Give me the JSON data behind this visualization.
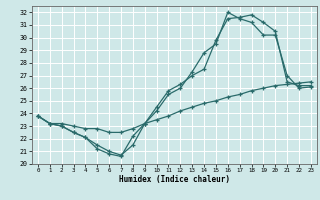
{
  "xlabel": "Humidex (Indice chaleur)",
  "bg_color": "#cfe8e8",
  "grid_color": "#ffffff",
  "line_color": "#2a6b6b",
  "xlim": [
    -0.5,
    23.5
  ],
  "ylim": [
    20,
    32.5
  ],
  "xticks": [
    0,
    1,
    2,
    3,
    4,
    5,
    6,
    7,
    8,
    9,
    10,
    11,
    12,
    13,
    14,
    15,
    16,
    17,
    18,
    19,
    20,
    21,
    22,
    23
  ],
  "yticks": [
    20,
    21,
    22,
    23,
    24,
    25,
    26,
    27,
    28,
    29,
    30,
    31,
    32
  ],
  "curve1_x": [
    0,
    1,
    2,
    3,
    4,
    5,
    6,
    7,
    8,
    9,
    10,
    11,
    12,
    13,
    14,
    15,
    16,
    17,
    18,
    19,
    20,
    21,
    22,
    23
  ],
  "curve1_y": [
    23.8,
    23.2,
    23.0,
    22.5,
    22.1,
    21.2,
    20.8,
    20.6,
    22.2,
    23.2,
    24.2,
    25.5,
    26.0,
    27.3,
    28.8,
    29.5,
    32.0,
    31.5,
    31.2,
    30.2,
    30.2,
    27.0,
    26.0,
    26.1
  ],
  "curve2_x": [
    0,
    1,
    2,
    3,
    4,
    5,
    6,
    7,
    8,
    9,
    10,
    11,
    12,
    13,
    14,
    15,
    16,
    17,
    18,
    19,
    20,
    21,
    22,
    23
  ],
  "curve2_y": [
    23.8,
    23.2,
    23.0,
    22.5,
    22.1,
    21.5,
    21.0,
    20.7,
    21.5,
    23.2,
    24.5,
    25.8,
    26.3,
    27.0,
    27.5,
    29.8,
    31.5,
    31.6,
    31.8,
    31.2,
    30.5,
    26.5,
    26.2,
    26.2
  ],
  "curve3_x": [
    0,
    1,
    2,
    3,
    4,
    5,
    6,
    7,
    8,
    9,
    10,
    11,
    12,
    13,
    14,
    15,
    16,
    17,
    18,
    19,
    20,
    21,
    22,
    23
  ],
  "curve3_y": [
    23.8,
    23.2,
    23.2,
    23.0,
    22.8,
    22.8,
    22.5,
    22.5,
    22.8,
    23.2,
    23.5,
    23.8,
    24.2,
    24.5,
    24.8,
    25.0,
    25.3,
    25.5,
    25.8,
    26.0,
    26.2,
    26.3,
    26.4,
    26.5
  ]
}
